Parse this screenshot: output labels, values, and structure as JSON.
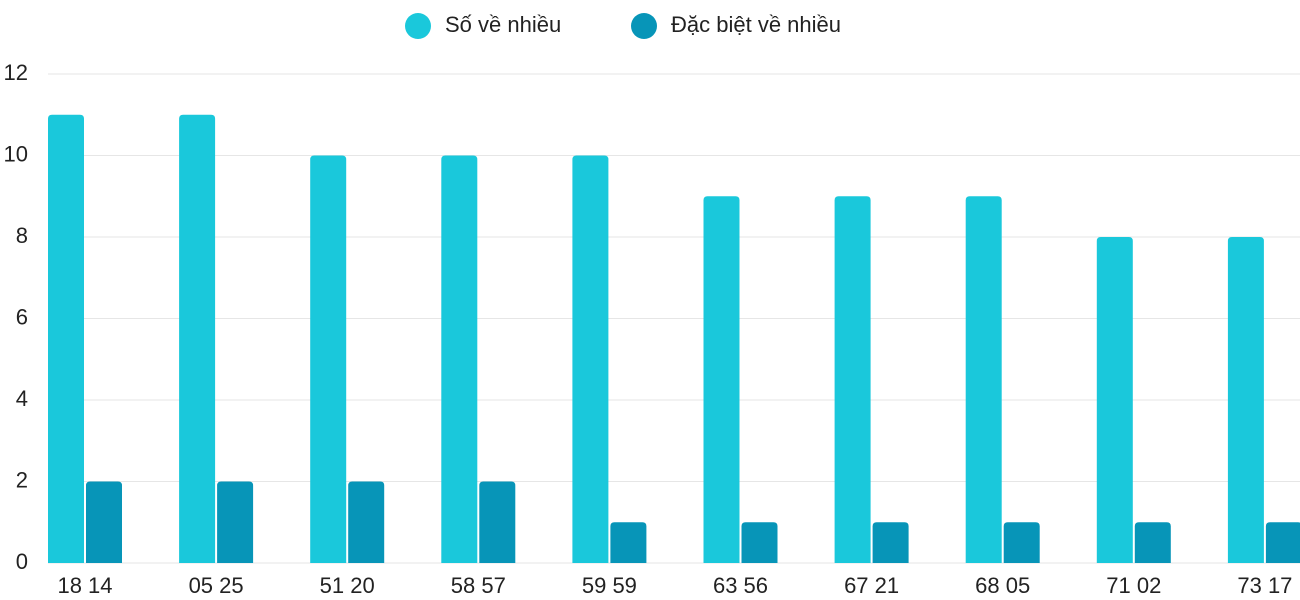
{
  "chart_data": {
    "type": "bar",
    "categories": [
      "18 14",
      "05 25",
      "51 20",
      "58 57",
      "59 59",
      "63 56",
      "67 21",
      "68 05",
      "71 02",
      "73 17"
    ],
    "series": [
      {
        "name": "Số về nhiều",
        "color": "#1ac8db",
        "values": [
          11,
          11,
          10,
          10,
          10,
          9,
          9,
          9,
          8,
          8
        ]
      },
      {
        "name": "Đặc biệt về nhiều",
        "color": "#0795b8",
        "values": [
          2,
          2,
          2,
          2,
          1,
          1,
          1,
          1,
          1,
          1
        ]
      }
    ],
    "ylim": [
      0,
      12
    ],
    "yticks": [
      0,
      2,
      4,
      6,
      8,
      10,
      12
    ],
    "grid": true,
    "legend": "top"
  }
}
